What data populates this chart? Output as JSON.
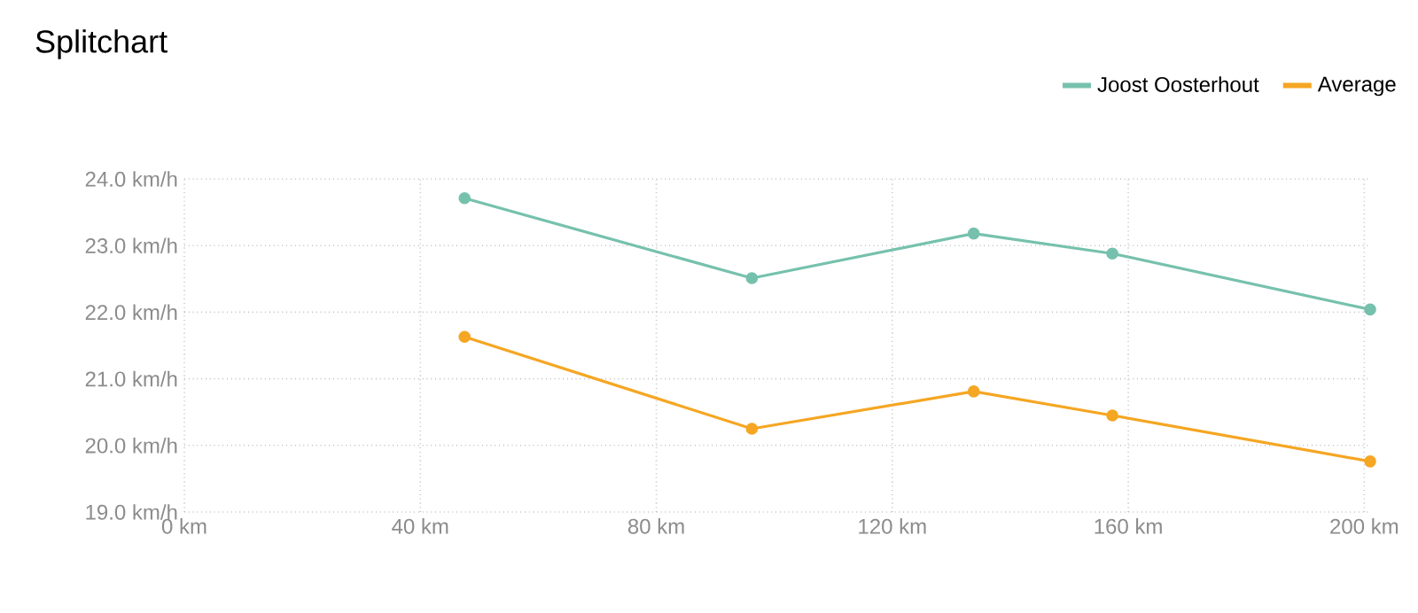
{
  "chart_data": {
    "type": "line",
    "title": "Splitchart",
    "x": [
      47.5,
      96.2,
      133.8,
      157.3,
      201
    ],
    "series": [
      {
        "name": "Joost Oosterhout",
        "color": "#76c1ad",
        "values": [
          23.71,
          22.51,
          23.18,
          22.88,
          22.04
        ]
      },
      {
        "name": "Average",
        "color": "#f5a623",
        "values": [
          21.63,
          20.25,
          20.81,
          20.45,
          19.76
        ]
      }
    ],
    "xlim": [
      0,
      201
    ],
    "xticks": [
      {
        "value": 0,
        "label": "0 km"
      },
      {
        "value": 40,
        "label": "40 km"
      },
      {
        "value": 80,
        "label": "80 km"
      },
      {
        "value": 120,
        "label": "120 km"
      },
      {
        "value": 160,
        "label": "160 km"
      },
      {
        "value": 200,
        "label": "200 km"
      }
    ],
    "ylim": [
      19,
      24
    ],
    "yticks": [
      {
        "value": 19,
        "label": "19.0 km/h"
      },
      {
        "value": 20,
        "label": "20.0 km/h"
      },
      {
        "value": 21,
        "label": "21.0 km/h"
      },
      {
        "value": 22,
        "label": "22.0 km/h"
      },
      {
        "value": 23,
        "label": "23.0 km/h"
      },
      {
        "value": 24,
        "label": "24.0 km/h"
      }
    ],
    "grid": true,
    "legend": "top right",
    "marker": "circle",
    "line_style": "solid"
  }
}
